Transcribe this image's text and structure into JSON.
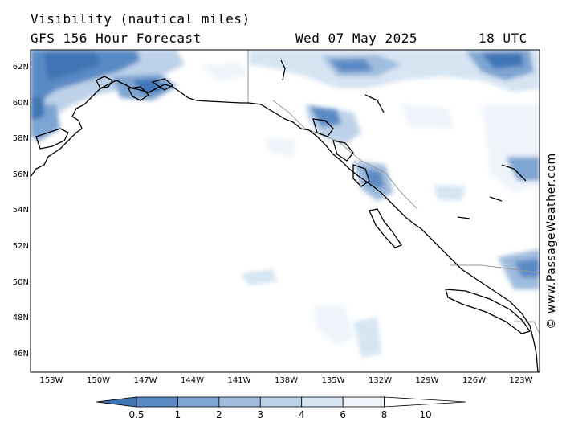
{
  "header": {
    "title": "Visibility (nautical miles)",
    "model": "GFS 156 Hour Forecast",
    "date": "Wed 07 May 2025",
    "time": "18 UTC"
  },
  "watermark": "© www.PassageWeather.com",
  "latitudes": [
    "62N",
    "60N",
    "58N",
    "56N",
    "54N",
    "52N",
    "50N",
    "48N",
    "46N"
  ],
  "longitudes": [
    "153W",
    "150W",
    "147W",
    "144W",
    "141W",
    "138W",
    "135W",
    "132W",
    "129W",
    "126W",
    "123W"
  ],
  "colorbar": {
    "labels": [
      "0.5",
      "1",
      "2",
      "3",
      "4",
      "6",
      "8",
      "10"
    ],
    "colors": [
      "#3f74b5",
      "#5a8ac4",
      "#7ea4d2",
      "#9fbcde",
      "#bdd2e9",
      "#d7e5f3",
      "#eef4fa",
      "#ffffff"
    ]
  },
  "map_colors": {
    "land_border": "#000000",
    "state_border": "#999999"
  }
}
